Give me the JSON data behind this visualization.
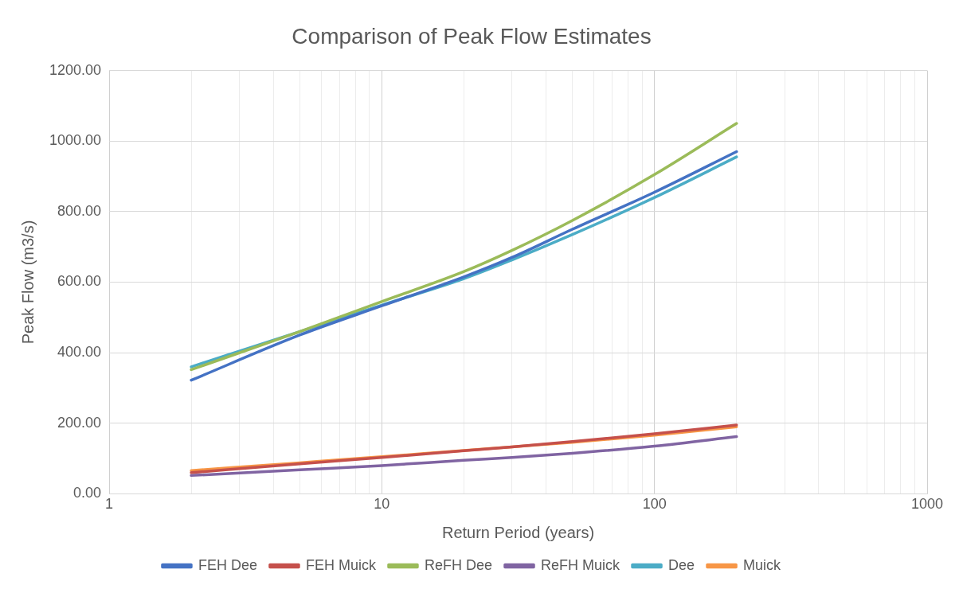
{
  "chart_data": {
    "type": "line",
    "title": "Comparison of Peak Flow Estimates",
    "xlabel": "Return Period (years)",
    "ylabel": "Peak Flow (m3/s)",
    "log": "x",
    "grid": true,
    "legend": "bottom",
    "marker": "none",
    "line_style": "solid",
    "xlim": [
      1,
      1000
    ],
    "xticks": [
      1,
      {
        "value": 2,
        "label": null
      },
      {
        "value": 3,
        "label": null
      },
      {
        "value": 4,
        "label": null
      },
      {
        "value": 5,
        "label": null
      },
      {
        "value": 6,
        "label": null
      },
      {
        "value": 7,
        "label": null
      },
      {
        "value": 8,
        "label": null
      },
      {
        "value": 9,
        "label": null
      },
      10,
      {
        "value": 20,
        "label": null
      },
      {
        "value": 30,
        "label": null
      },
      {
        "value": 40,
        "label": null
      },
      {
        "value": 50,
        "label": null
      },
      {
        "value": 60,
        "label": null
      },
      {
        "value": 70,
        "label": null
      },
      {
        "value": 80,
        "label": null
      },
      {
        "value": 90,
        "label": null
      },
      100,
      {
        "value": 200,
        "label": null
      },
      {
        "value": 300,
        "label": null
      },
      {
        "value": 400,
        "label": null
      },
      {
        "value": 500,
        "label": null
      },
      {
        "value": 600,
        "label": null
      },
      {
        "value": 700,
        "label": null
      },
      {
        "value": 800,
        "label": null
      },
      {
        "value": 900,
        "label": null
      },
      1000
    ],
    "ylim": [
      0,
      1200
    ],
    "yticks": [
      {
        "value": 0,
        "label": "0.00"
      },
      {
        "value": 200,
        "label": "200.00"
      },
      {
        "value": 400,
        "label": "400.00"
      },
      {
        "value": 600,
        "label": "600.00"
      },
      {
        "value": 800,
        "label": "800.00"
      },
      {
        "value": 1000,
        "label": "1000.00"
      },
      {
        "value": 1200,
        "label": "1200.00"
      }
    ],
    "x": [
      2,
      5,
      10,
      20,
      30,
      50,
      100,
      200
    ],
    "series": [
      {
        "name": "FEH Dee",
        "color": "#4472c4",
        "values": [
          322,
          450,
          533,
          615,
          670,
          750,
          855,
          970
        ]
      },
      {
        "name": "FEH Muick",
        "color": "#c5504b",
        "values": [
          60,
          85,
          103,
          122,
          133,
          148,
          170,
          195
        ]
      },
      {
        "name": "ReFH Dee",
        "color": "#9bbb59",
        "values": [
          352,
          460,
          545,
          630,
          690,
          775,
          905,
          1050
        ]
      },
      {
        "name": "ReFH Muick",
        "color": "#8064a2",
        "values": [
          52,
          68,
          80,
          95,
          103,
          115,
          135,
          162
        ]
      },
      {
        "name": "Dee",
        "color": "#4bacc6",
        "values": [
          360,
          460,
          535,
          610,
          663,
          735,
          840,
          955
        ]
      },
      {
        "name": "Muick",
        "color": "#f79646",
        "values": [
          66,
          88,
          105,
          123,
          133,
          146,
          166,
          190
        ]
      }
    ]
  }
}
